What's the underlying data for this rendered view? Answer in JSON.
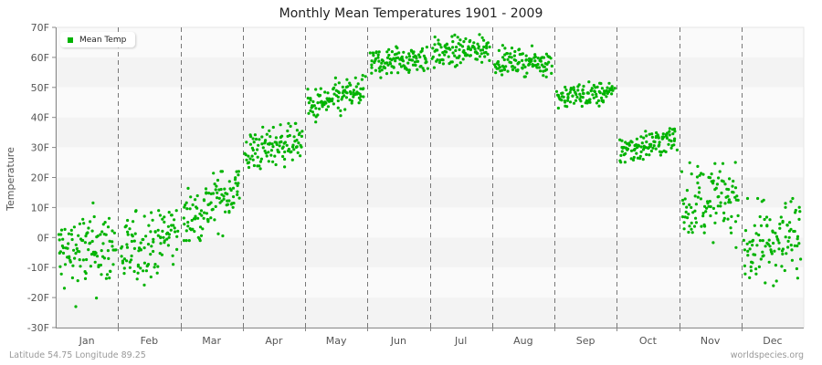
{
  "title": "Monthly Mean Temperatures 1901 - 2009",
  "footer": {
    "left": "Latitude 54.75 Longitude 89.25",
    "right": "worldspecies.org"
  },
  "legend": {
    "label": "Mean Temp",
    "color": "#00b300"
  },
  "colors": {
    "points": "#00b300",
    "band_light": "#fafafa",
    "band_dark": "#f3f3f3",
    "divider": "#777777",
    "axis": "#888888"
  },
  "chart_data": {
    "type": "scatter",
    "title": "Monthly Mean Temperatures 1901 - 2009",
    "xlabel": "",
    "ylabel": "Temperature",
    "ylim": [
      -30,
      70
    ],
    "yticks": [
      "70F",
      "60F",
      "50F",
      "40F",
      "30F",
      "20F",
      "10F",
      "0F",
      "-10F",
      "-20F",
      "-30F"
    ],
    "categories": [
      "Jan",
      "Feb",
      "Mar",
      "Apr",
      "May",
      "Jun",
      "Jul",
      "Aug",
      "Sep",
      "Oct",
      "Nov",
      "Dec"
    ],
    "legend": [
      "Mean Temp"
    ],
    "legend_position": "top-left",
    "grid": "alternating horizontal bands, dashed vertical month dividers",
    "years": [
      1901,
      2009
    ],
    "points_per_month": 109,
    "series": [
      {
        "name": "Mean Temp",
        "monthly_summary": [
          {
            "month": "Jan",
            "mean": -5,
            "min": -23,
            "max": 15,
            "trend_start": -6,
            "trend_end": -3,
            "spread": 7
          },
          {
            "month": "Feb",
            "mean": -3,
            "min": -21,
            "max": 9,
            "trend_start": -6,
            "trend_end": 2,
            "spread": 6
          },
          {
            "month": "Mar",
            "mean": 10,
            "min": -1,
            "max": 22,
            "trend_start": 5,
            "trend_end": 17,
            "spread": 5
          },
          {
            "month": "Apr",
            "mean": 31,
            "min": 21,
            "max": 38,
            "trend_start": 28,
            "trend_end": 33,
            "spread": 3.5
          },
          {
            "month": "May",
            "mean": 46,
            "min": 37,
            "max": 54,
            "trend_start": 43,
            "trend_end": 49,
            "spread": 3
          },
          {
            "month": "Jun",
            "mean": 59,
            "min": 52,
            "max": 66,
            "trend_start": 58,
            "trend_end": 60,
            "spread": 2.5
          },
          {
            "month": "Jul",
            "mean": 62,
            "min": 55,
            "max": 69,
            "trend_start": 61,
            "trend_end": 63,
            "spread": 2.5
          },
          {
            "month": "Aug",
            "mean": 58,
            "min": 52,
            "max": 64,
            "trend_start": 59,
            "trend_end": 58,
            "spread": 2
          },
          {
            "month": "Sep",
            "mean": 47,
            "min": 42,
            "max": 55,
            "trend_start": 47,
            "trend_end": 48,
            "spread": 2
          },
          {
            "month": "Oct",
            "mean": 31,
            "min": 22,
            "max": 38,
            "trend_start": 29,
            "trend_end": 33,
            "spread": 2.5
          },
          {
            "month": "Nov",
            "mean": 12,
            "min": -4,
            "max": 25,
            "trend_start": 12,
            "trend_end": 13,
            "spread": 6
          },
          {
            "month": "Dec",
            "mean": -1,
            "min": -21,
            "max": 13,
            "trend_start": -4,
            "trend_end": 2,
            "spread": 7
          }
        ]
      }
    ]
  }
}
